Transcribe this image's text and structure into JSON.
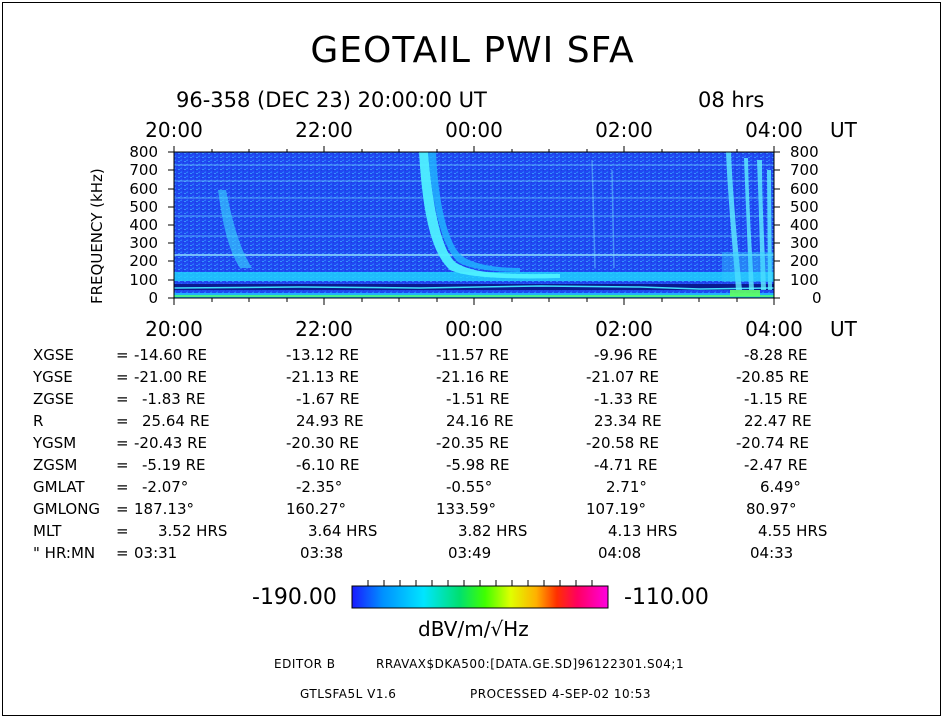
{
  "header": {
    "title": "GEOTAIL PWI SFA",
    "date_line": "96-358 (DEC 23) 20:00:00 UT",
    "duration": "08 hrs"
  },
  "chart_data": {
    "type": "heatmap",
    "title": "GEOTAIL PWI SFA",
    "ylabel": "FREQUENCY (kHz)",
    "x_ticks": [
      "20:00",
      "22:00",
      "00:00",
      "02:00",
      "04:00"
    ],
    "x_unit": "UT",
    "y_ticks": [
      "0",
      "100",
      "200",
      "300",
      "400",
      "500",
      "600",
      "700",
      "800"
    ],
    "ylim": [
      0,
      800
    ],
    "colorbar": {
      "min": "-190.00",
      "max": "-110.00",
      "unit": "dBV/m/√Hz",
      "colors": [
        "#1a1aff",
        "#00e5ff",
        "#00ff40",
        "#ffff00",
        "#ff2000",
        "#ff00c0"
      ]
    }
  },
  "ephemeris": {
    "rows": [
      {
        "label": "XGSE",
        "values": [
          "-14.60 RE",
          "-13.12 RE",
          "-11.57 RE",
          "-9.96 RE",
          "-8.28 RE"
        ]
      },
      {
        "label": "YGSE",
        "values": [
          "-21.00 RE",
          "-21.13 RE",
          "-21.16 RE",
          "-21.07 RE",
          "-20.85 RE"
        ]
      },
      {
        "label": "ZGSE",
        "values": [
          "-1.83 RE",
          "-1.67 RE",
          "-1.51 RE",
          "-1.33 RE",
          "-1.15 RE"
        ]
      },
      {
        "label": "R",
        "values": [
          "25.64 RE",
          "24.93 RE",
          "24.16 RE",
          "23.34 RE",
          "22.47 RE"
        ]
      },
      {
        "label": "YGSM",
        "values": [
          "-20.43 RE",
          "-20.30 RE",
          "-20.35 RE",
          "-20.58 RE",
          "-20.74 RE"
        ]
      },
      {
        "label": "ZGSM",
        "values": [
          "-5.19 RE",
          "-6.10 RE",
          "-5.98 RE",
          "-4.71 RE",
          "-2.47 RE"
        ]
      },
      {
        "label": "GMLAT",
        "values": [
          "-2.07°",
          "-2.35°",
          "-0.55°",
          "2.71°",
          "6.49°"
        ]
      },
      {
        "label": "GMLONG",
        "values": [
          "187.13°",
          "160.27°",
          "133.59°",
          "107.19°",
          "80.97°"
        ]
      },
      {
        "label": "MLT",
        "values": [
          "3.52 HRS",
          "3.64 HRS",
          "3.82 HRS",
          "4.13 HRS",
          "4.55 HRS"
        ]
      },
      {
        "label": "\" HR:MN",
        "values": [
          "03:31",
          "03:38",
          "03:49",
          "04:08",
          "04:33"
        ]
      }
    ]
  },
  "footer": {
    "editor": "EDITOR B",
    "path": "RRAVAX$DKA500:[DATA.GE.SD]96122301.S04;1",
    "version": "GTLSFA5L V1.6",
    "processed": "PROCESSED 4-SEP-02 10:53"
  }
}
